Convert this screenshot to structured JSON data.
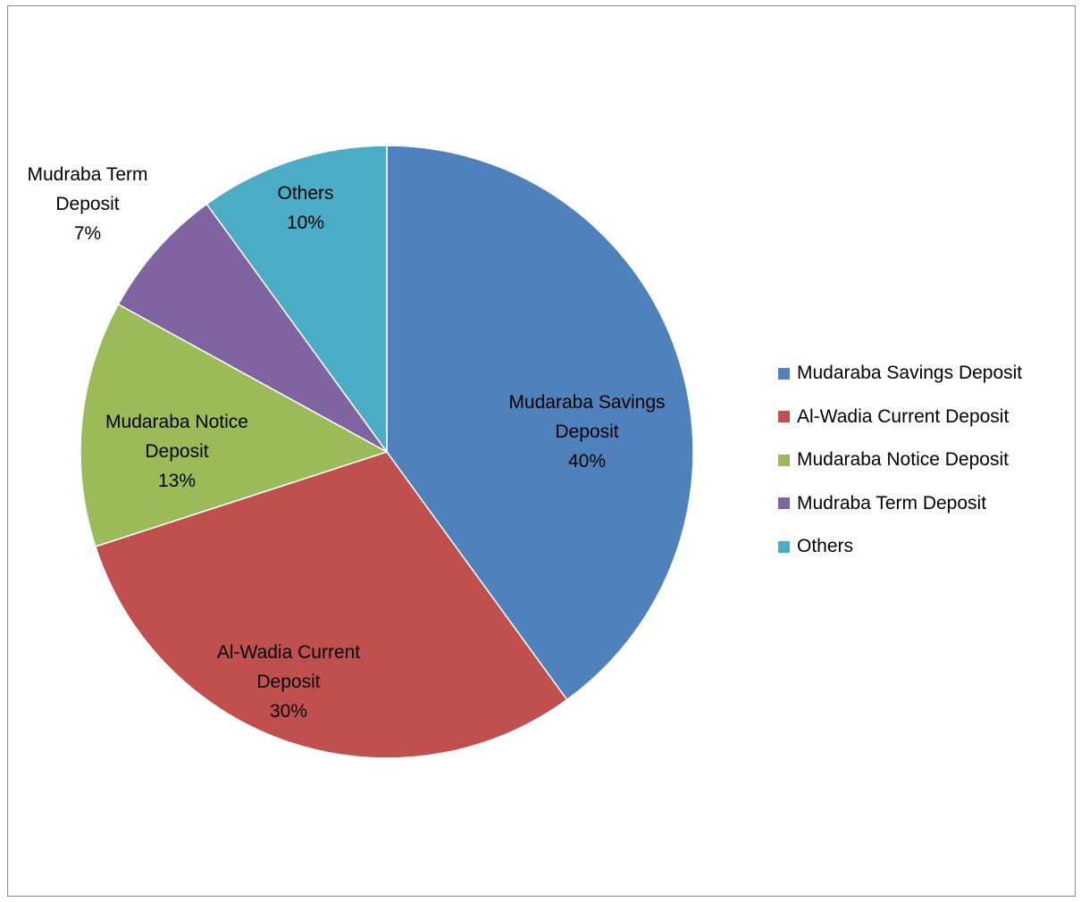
{
  "chart_data": {
    "type": "pie",
    "title": "",
    "legend_position": "right",
    "slices": [
      {
        "name": "Mudaraba Savings Deposit",
        "value": 40,
        "label_lines": [
          "Mudaraba Savings",
          "Deposit",
          "40%"
        ],
        "color": "#4F81BD"
      },
      {
        "name": "Al-Wadia Current Deposit",
        "value": 30,
        "label_lines": [
          "Al-Wadia Current",
          "Deposit",
          "30%"
        ],
        "color": "#C0504D"
      },
      {
        "name": "Mudaraba Notice Deposit",
        "value": 13,
        "label_lines": [
          "Mudaraba Notice",
          "Deposit",
          "13%"
        ],
        "color": "#9BBB59"
      },
      {
        "name": "Mudraba Term Deposit",
        "value": 7,
        "label_lines": [
          "Mudraba Term",
          "Deposit",
          "7%"
        ],
        "color": "#8064A2"
      },
      {
        "name": "Others",
        "value": 10,
        "label_lines": [
          "Others",
          "10%"
        ],
        "color": "#4BACC6"
      }
    ]
  }
}
